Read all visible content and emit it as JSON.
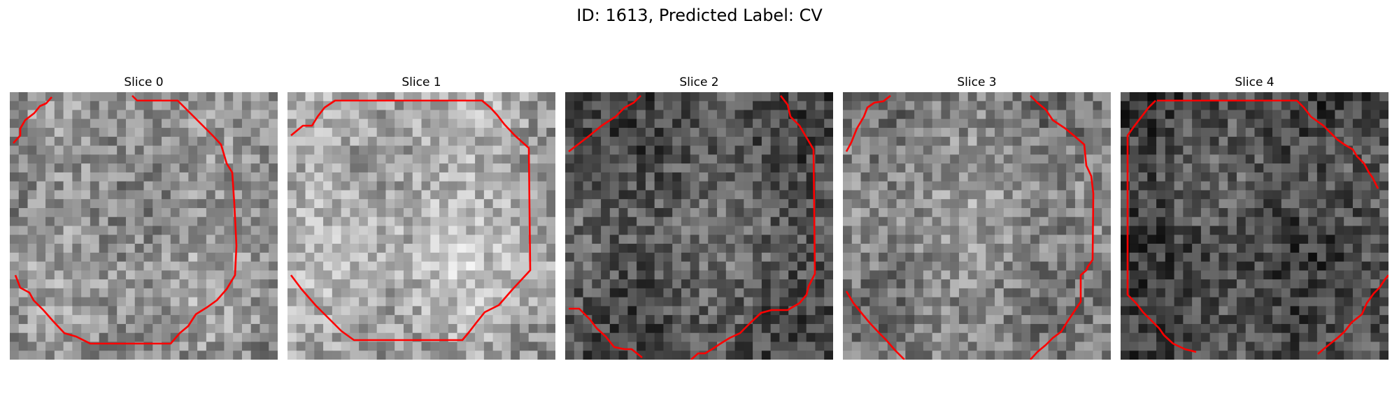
{
  "figure": {
    "title": "ID: 1613, Predicted Label: CV"
  },
  "slices": [
    {
      "label": "Slice 0",
      "tone": 150,
      "contour_color": "#ff0000"
    },
    {
      "label": "Slice 1",
      "tone": 178,
      "contour_color": "#ff0000"
    },
    {
      "label": "Slice 2",
      "tone": 95,
      "contour_color": "#ff0000"
    },
    {
      "label": "Slice 3",
      "tone": 140,
      "contour_color": "#ff0000"
    },
    {
      "label": "Slice 4",
      "tone": 82,
      "contour_color": "#ff0000"
    }
  ]
}
